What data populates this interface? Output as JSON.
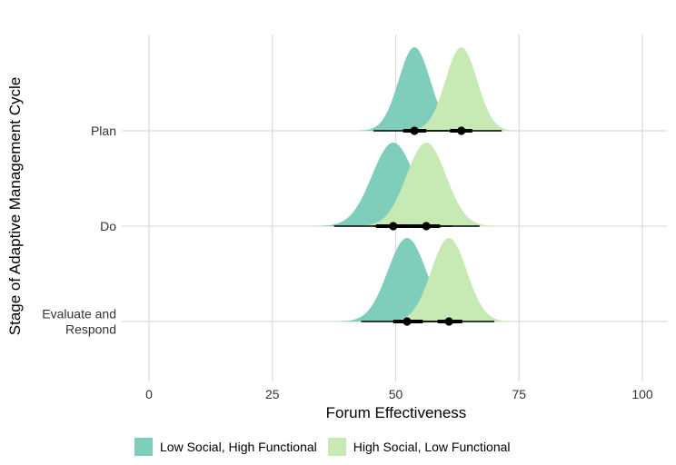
{
  "chart_data": {
    "type": "density-ridges",
    "xlabel": "Forum Effectiveness",
    "ylabel": "Stage of Adaptive Management Cycle",
    "xlim": [
      0,
      100
    ],
    "x_ticks": [
      "0",
      "25",
      "50",
      "75",
      "100"
    ],
    "categories": [
      {
        "lines": [
          "Plan"
        ]
      },
      {
        "lines": [
          "Do"
        ]
      },
      {
        "lines": [
          "Evaluate and",
          "Respond"
        ]
      }
    ],
    "series": [
      {
        "name": "Low Social, High Functional",
        "color": "#7fcdbb",
        "groups": [
          {
            "mean": 53.8,
            "sd": 3.2,
            "ci66": [
              51.5,
              56.2
            ],
            "ci95": [
              45.5,
              62.0
            ]
          },
          {
            "mean": 49.5,
            "sd": 4.3,
            "ci66": [
              46.0,
              53.0
            ],
            "ci95": [
              37.5,
              61.5
            ]
          },
          {
            "mean": 52.3,
            "sd": 3.9,
            "ci66": [
              49.5,
              55.5
            ],
            "ci95": [
              43.0,
              61.5
            ]
          }
        ]
      },
      {
        "name": "High Social, Low Functional",
        "color": "#c7e9b4",
        "groups": [
          {
            "mean": 63.3,
            "sd": 3.2,
            "ci66": [
              61.0,
              65.5
            ],
            "ci95": [
              55.0,
              71.5
            ]
          },
          {
            "mean": 56.2,
            "sd": 4.0,
            "ci66": [
              53.0,
              59.0
            ],
            "ci95": [
              45.5,
              67.0
            ]
          },
          {
            "mean": 60.8,
            "sd": 3.6,
            "ci66": [
              58.5,
              63.5
            ],
            "ci95": [
              51.5,
              70.0
            ]
          }
        ]
      }
    ],
    "grid": true,
    "legend": "bottom"
  }
}
